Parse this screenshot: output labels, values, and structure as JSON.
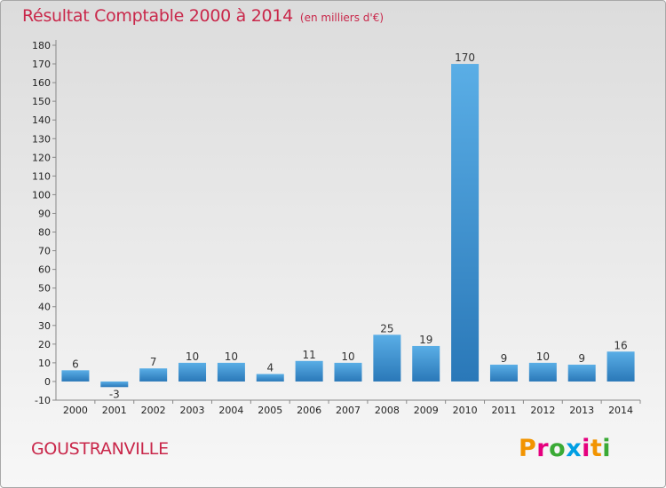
{
  "header": {
    "title": "Résultat Comptable 2000 à 2014",
    "unit": "(en milliers d'€)"
  },
  "footer": {
    "commune": "GOUSTRANVILLE",
    "logo_text": "Proxiti",
    "logo_colors": [
      "#f29400",
      "#e5007e",
      "#3aaa35",
      "#009fe3",
      "#e5007e",
      "#f29400",
      "#3aaa35"
    ]
  },
  "colors": {
    "title": "#c9274a",
    "bar_light": "#5aaee6",
    "bar_dark": "#2a78b8"
  },
  "chart_data": {
    "type": "bar",
    "categories": [
      "2000",
      "2001",
      "2002",
      "2003",
      "2004",
      "2005",
      "2006",
      "2007",
      "2008",
      "2009",
      "2010",
      "2011",
      "2012",
      "2013",
      "2014"
    ],
    "values": [
      6,
      -3,
      7,
      10,
      10,
      4,
      11,
      10,
      25,
      19,
      170,
      9,
      10,
      9,
      16
    ],
    "ylim": [
      -10,
      180
    ],
    "yticks": [
      -10,
      0,
      10,
      20,
      30,
      40,
      50,
      60,
      70,
      80,
      90,
      100,
      110,
      120,
      130,
      140,
      150,
      160,
      170,
      180
    ],
    "grid": false,
    "xlabel": "",
    "ylabel": ""
  }
}
